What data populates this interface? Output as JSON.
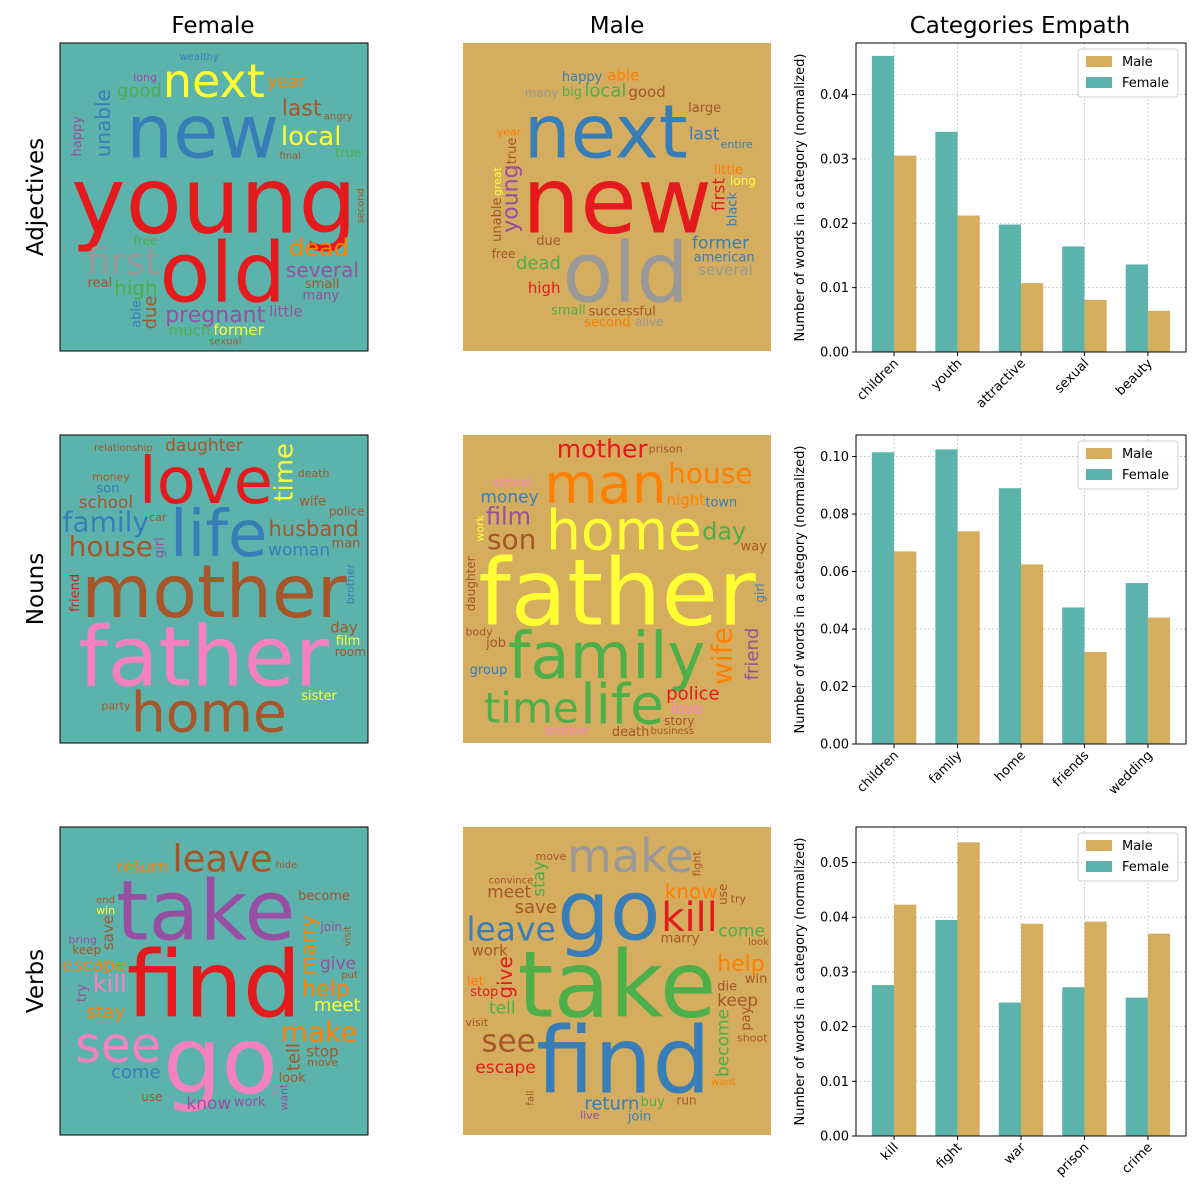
{
  "column_titles": [
    "Female",
    "Male",
    "Categories Empath"
  ],
  "row_labels": [
    "Adjectives",
    "Nouns",
    "Verbs"
  ],
  "colors": {
    "female_bg": "#5cb3ab",
    "male_bg": "#d5ad5f",
    "male_bar": "#d5ad5f",
    "female_bar": "#5cb3ab",
    "red": "#e41a1c",
    "blue": "#377eb8",
    "green": "#4daf4a",
    "purple": "#984ea3",
    "orange": "#ff7f00",
    "yellow": "#ffff33",
    "brown": "#a65628",
    "pink": "#f781bf",
    "gray": "#999999"
  },
  "wordclouds": {
    "adjectives_female": [
      {
        "w": "young",
        "c": "red",
        "s": 100
      },
      {
        "w": "old",
        "c": "red",
        "s": 90
      },
      {
        "w": "new",
        "c": "blue",
        "s": 80
      },
      {
        "w": "next",
        "c": "yellow",
        "s": 50
      },
      {
        "w": "first",
        "c": "gray",
        "s": 40
      },
      {
        "w": "pregnant",
        "c": "purple",
        "s": 24
      },
      {
        "w": "local",
        "c": "yellow",
        "s": 28
      },
      {
        "w": "dead",
        "c": "orange",
        "s": 26
      },
      {
        "w": "unable",
        "c": "blue",
        "s": 22
      },
      {
        "w": "high",
        "c": "green",
        "s": 22
      },
      {
        "w": "last",
        "c": "brown",
        "s": 24
      },
      {
        "w": "several",
        "c": "purple",
        "s": 22
      },
      {
        "w": "good",
        "c": "green",
        "s": 20
      },
      {
        "w": "due",
        "c": "brown",
        "s": 20
      },
      {
        "w": "former",
        "c": "yellow",
        "s": 16
      },
      {
        "w": "little",
        "c": "purple",
        "s": 16
      },
      {
        "w": "year",
        "c": "orange",
        "s": 18
      },
      {
        "w": "much",
        "c": "green",
        "s": 16
      },
      {
        "w": "happy",
        "c": "purple",
        "s": 14
      },
      {
        "w": "small",
        "c": "brown",
        "s": 14
      },
      {
        "w": "true",
        "c": "green",
        "s": 14
      },
      {
        "w": "many",
        "c": "purple",
        "s": 14
      },
      {
        "w": "real",
        "c": "brown",
        "s": 14
      },
      {
        "w": "able",
        "c": "blue",
        "s": 14
      },
      {
        "w": "free",
        "c": "green",
        "s": 13
      },
      {
        "w": "wealthy",
        "c": "blue",
        "s": 11
      },
      {
        "w": "final",
        "c": "brown",
        "s": 11
      },
      {
        "w": "long",
        "c": "purple",
        "s": 12
      },
      {
        "w": "second",
        "c": "brown",
        "s": 11
      },
      {
        "w": "angry",
        "c": "brown",
        "s": 11
      },
      {
        "w": "sexual",
        "c": "brown",
        "s": 10
      }
    ],
    "adjectives_male": [
      {
        "w": "new",
        "c": "red",
        "s": 100
      },
      {
        "w": "old",
        "c": "gray",
        "s": 90
      },
      {
        "w": "next",
        "c": "blue",
        "s": 80
      },
      {
        "w": "young",
        "c": "purple",
        "s": 24
      },
      {
        "w": "dead",
        "c": "green",
        "s": 20
      },
      {
        "w": "local",
        "c": "green",
        "s": 20
      },
      {
        "w": "last",
        "c": "blue",
        "s": 18
      },
      {
        "w": "former",
        "c": "blue",
        "s": 18
      },
      {
        "w": "first",
        "c": "red",
        "s": 18
      },
      {
        "w": "successful",
        "c": "brown",
        "s": 14
      },
      {
        "w": "good",
        "c": "brown",
        "s": 16
      },
      {
        "w": "american",
        "c": "blue",
        "s": 14
      },
      {
        "w": "little",
        "c": "orange",
        "s": 14
      },
      {
        "w": "black",
        "c": "blue",
        "s": 14
      },
      {
        "w": "high",
        "c": "red",
        "s": 16
      },
      {
        "w": "able",
        "c": "orange",
        "s": 16
      },
      {
        "w": "small",
        "c": "green",
        "s": 14
      },
      {
        "w": "several",
        "c": "gray",
        "s": 16
      },
      {
        "w": "unable",
        "c": "brown",
        "s": 14
      },
      {
        "w": "second",
        "c": "orange",
        "s": 14
      },
      {
        "w": "large",
        "c": "brown",
        "s": 14
      },
      {
        "w": "happy",
        "c": "blue",
        "s": 14
      },
      {
        "w": "due",
        "c": "brown",
        "s": 14
      },
      {
        "w": "true",
        "c": "brown",
        "s": 14
      },
      {
        "w": "big",
        "c": "green",
        "s": 14
      },
      {
        "w": "long",
        "c": "yellow",
        "s": 13
      },
      {
        "w": "free",
        "c": "brown",
        "s": 13
      },
      {
        "w": "year",
        "c": "orange",
        "s": 12
      },
      {
        "w": "great",
        "c": "yellow",
        "s": 12
      },
      {
        "w": "entire",
        "c": "blue",
        "s": 12
      },
      {
        "w": "many",
        "c": "gray",
        "s": 13
      },
      {
        "w": "alive",
        "c": "gray",
        "s": 13
      }
    ],
    "nouns_female": [
      {
        "w": "mother",
        "c": "brown",
        "s": 100
      },
      {
        "w": "father",
        "c": "pink",
        "s": 90
      },
      {
        "w": "life",
        "c": "blue",
        "s": 70
      },
      {
        "w": "love",
        "c": "red",
        "s": 70
      },
      {
        "w": "home",
        "c": "brown",
        "s": 60
      },
      {
        "w": "house",
        "c": "brown",
        "s": 40
      },
      {
        "w": "husband",
        "c": "brown",
        "s": 30
      },
      {
        "w": "family",
        "c": "blue",
        "s": 30
      },
      {
        "w": "time",
        "c": "yellow",
        "s": 28
      },
      {
        "w": "woman",
        "c": "blue",
        "s": 24
      },
      {
        "w": "daughter",
        "c": "brown",
        "s": 18
      },
      {
        "w": "school",
        "c": "brown",
        "s": 18
      },
      {
        "w": "wife",
        "c": "brown",
        "s": 14
      },
      {
        "w": "girl",
        "c": "purple",
        "s": 14
      },
      {
        "w": "day",
        "c": "brown",
        "s": 16
      },
      {
        "w": "man",
        "c": "brown",
        "s": 14
      },
      {
        "w": "film",
        "c": "yellow",
        "s": 14
      },
      {
        "w": "son",
        "c": "blue",
        "s": 14
      },
      {
        "w": "friend",
        "c": "red",
        "s": 14
      },
      {
        "w": "sister",
        "c": "yellow",
        "s": 14
      },
      {
        "w": "police",
        "c": "brown",
        "s": 13
      },
      {
        "w": "room",
        "c": "brown",
        "s": 13
      },
      {
        "w": "party",
        "c": "brown",
        "s": 12
      },
      {
        "w": "brother",
        "c": "blue",
        "s": 12
      },
      {
        "w": "car",
        "c": "brown",
        "s": 12
      },
      {
        "w": "money",
        "c": "brown",
        "s": 12
      },
      {
        "w": "death",
        "c": "brown",
        "s": 12
      },
      {
        "w": "relationship",
        "c": "brown",
        "s": 11
      }
    ],
    "nouns_male": [
      {
        "w": "father",
        "c": "yellow",
        "s": 100
      },
      {
        "w": "family",
        "c": "green",
        "s": 70
      },
      {
        "w": "home",
        "c": "yellow",
        "s": 60
      },
      {
        "w": "man",
        "c": "orange",
        "s": 60
      },
      {
        "w": "life",
        "c": "green",
        "s": 60
      },
      {
        "w": "time",
        "c": "green",
        "s": 60
      },
      {
        "w": "mother",
        "c": "red",
        "s": 36
      },
      {
        "w": "son",
        "c": "brown",
        "s": 30
      },
      {
        "w": "wife",
        "c": "orange",
        "s": 30
      },
      {
        "w": "house",
        "c": "orange",
        "s": 30
      },
      {
        "w": "day",
        "c": "green",
        "s": 26
      },
      {
        "w": "film",
        "c": "purple",
        "s": 26
      },
      {
        "w": "police",
        "c": "red",
        "s": 20
      },
      {
        "w": "friend",
        "c": "purple",
        "s": 20
      },
      {
        "w": "money",
        "c": "blue",
        "s": 18
      },
      {
        "w": "night",
        "c": "orange",
        "s": 16
      },
      {
        "w": "job",
        "c": "brown",
        "s": 14
      },
      {
        "w": "town",
        "c": "blue",
        "s": 14
      },
      {
        "w": "girl",
        "c": "blue",
        "s": 13
      },
      {
        "w": "love",
        "c": "pink",
        "s": 16
      },
      {
        "w": "death",
        "c": "brown",
        "s": 14
      },
      {
        "w": "group",
        "c": "blue",
        "s": 14
      },
      {
        "w": "way",
        "c": "brown",
        "s": 14
      },
      {
        "w": "daughter",
        "c": "brown",
        "s": 13
      },
      {
        "w": "story",
        "c": "brown",
        "s": 13
      },
      {
        "w": "school",
        "c": "pink",
        "s": 13
      },
      {
        "w": "brother",
        "c": "pink",
        "s": 13
      },
      {
        "w": "body",
        "c": "brown",
        "s": 12
      },
      {
        "w": "work",
        "c": "yellow",
        "s": 12
      },
      {
        "w": "prison",
        "c": "brown",
        "s": 12
      },
      {
        "w": "business",
        "c": "brown",
        "s": 11
      }
    ],
    "verbs_female": [
      {
        "w": "find",
        "c": "red",
        "s": 100
      },
      {
        "w": "go",
        "c": "pink",
        "s": 100
      },
      {
        "w": "take",
        "c": "purple",
        "s": 90
      },
      {
        "w": "see",
        "c": "pink",
        "s": 70
      },
      {
        "w": "leave",
        "c": "brown",
        "s": 40
      },
      {
        "w": "make",
        "c": "orange",
        "s": 30
      },
      {
        "w": "kill",
        "c": "pink",
        "s": 26
      },
      {
        "w": "help",
        "c": "orange",
        "s": 24
      },
      {
        "w": "marry",
        "c": "orange",
        "s": 22
      },
      {
        "w": "stay",
        "c": "orange",
        "s": 20
      },
      {
        "w": "escape",
        "c": "orange",
        "s": 20
      },
      {
        "w": "come",
        "c": "blue",
        "s": 20
      },
      {
        "w": "meet",
        "c": "yellow",
        "s": 20
      },
      {
        "w": "tell",
        "c": "brown",
        "s": 20
      },
      {
        "w": "know",
        "c": "purple",
        "s": 18
      },
      {
        "w": "return",
        "c": "orange",
        "s": 18
      },
      {
        "w": "give",
        "c": "purple",
        "s": 18
      },
      {
        "w": "stop",
        "c": "brown",
        "s": 16
      },
      {
        "w": "save",
        "c": "brown",
        "s": 16
      },
      {
        "w": "become",
        "c": "brown",
        "s": 14
      },
      {
        "w": "work",
        "c": "purple",
        "s": 14
      },
      {
        "w": "look",
        "c": "brown",
        "s": 14
      },
      {
        "w": "join",
        "c": "purple",
        "s": 13
      },
      {
        "w": "try",
        "c": "purple",
        "s": 14
      },
      {
        "w": "keep",
        "c": "brown",
        "s": 13
      },
      {
        "w": "use",
        "c": "brown",
        "s": 13
      },
      {
        "w": "win",
        "c": "yellow",
        "s": 12
      },
      {
        "w": "move",
        "c": "brown",
        "s": 12
      },
      {
        "w": "want",
        "c": "purple",
        "s": 12
      },
      {
        "w": "bring",
        "c": "purple",
        "s": 12
      },
      {
        "w": "put",
        "c": "brown",
        "s": 11
      },
      {
        "w": "hide",
        "c": "brown",
        "s": 11
      },
      {
        "w": "end",
        "c": "brown",
        "s": 11
      },
      {
        "w": "visit",
        "c": "brown",
        "s": 11
      }
    ],
    "verbs_male": [
      {
        "w": "take",
        "c": "green",
        "s": 100
      },
      {
        "w": "find",
        "c": "blue",
        "s": 100
      },
      {
        "w": "go",
        "c": "blue",
        "s": 90
      },
      {
        "w": "make",
        "c": "gray",
        "s": 50
      },
      {
        "w": "kill",
        "c": "red",
        "s": 44
      },
      {
        "w": "leave",
        "c": "blue",
        "s": 36
      },
      {
        "w": "see",
        "c": "brown",
        "s": 34
      },
      {
        "w": "help",
        "c": "orange",
        "s": 24
      },
      {
        "w": "give",
        "c": "red",
        "s": 22
      },
      {
        "w": "know",
        "c": "orange",
        "s": 22
      },
      {
        "w": "save",
        "c": "brown",
        "s": 20
      },
      {
        "w": "return",
        "c": "blue",
        "s": 20
      },
      {
        "w": "keep",
        "c": "brown",
        "s": 18
      },
      {
        "w": "become",
        "c": "green",
        "s": 18
      },
      {
        "w": "escape",
        "c": "red",
        "s": 18
      },
      {
        "w": "come",
        "c": "green",
        "s": 18
      },
      {
        "w": "meet",
        "c": "brown",
        "s": 18
      },
      {
        "w": "tell",
        "c": "green",
        "s": 18
      },
      {
        "w": "stay",
        "c": "green",
        "s": 18
      },
      {
        "w": "work",
        "c": "brown",
        "s": 16
      },
      {
        "w": "marry",
        "c": "brown",
        "s": 14
      },
      {
        "w": "die",
        "c": "brown",
        "s": 14
      },
      {
        "w": "stop",
        "c": "red",
        "s": 14
      },
      {
        "w": "pay",
        "c": "brown",
        "s": 14
      },
      {
        "w": "buy",
        "c": "green",
        "s": 14
      },
      {
        "w": "win",
        "c": "brown",
        "s": 14
      },
      {
        "w": "let",
        "c": "orange",
        "s": 14
      },
      {
        "w": "join",
        "c": "blue",
        "s": 14
      },
      {
        "w": "use",
        "c": "brown",
        "s": 13
      },
      {
        "w": "run",
        "c": "brown",
        "s": 13
      },
      {
        "w": "live",
        "c": "purple",
        "s": 12
      },
      {
        "w": "visit",
        "c": "brown",
        "s": 12
      },
      {
        "w": "move",
        "c": "brown",
        "s": 12
      },
      {
        "w": "fight",
        "c": "brown",
        "s": 12
      },
      {
        "w": "shoot",
        "c": "brown",
        "s": 12
      },
      {
        "w": "try",
        "c": "brown",
        "s": 12
      },
      {
        "w": "convince",
        "c": "brown",
        "s": 11
      },
      {
        "w": "look",
        "c": "brown",
        "s": 11
      },
      {
        "w": "fall",
        "c": "brown",
        "s": 11
      },
      {
        "w": "want",
        "c": "orange",
        "s": 11
      }
    ]
  },
  "chart_data": [
    {
      "type": "bar",
      "categories": [
        "children",
        "youth",
        "attractive",
        "sexual",
        "beauty"
      ],
      "series": [
        {
          "name": "Male",
          "values": [
            0.0305,
            0.0212,
            0.0107,
            0.0081,
            0.0064
          ]
        },
        {
          "name": "Female",
          "values": [
            0.046,
            0.0342,
            0.0198,
            0.0164,
            0.0136
          ]
        }
      ],
      "title": "Categories Empath",
      "ylabel": "Number of words in a category (normalized)",
      "ylim": [
        0,
        0.048
      ],
      "yticks": [
        0.0,
        0.01,
        0.02,
        0.03,
        0.04
      ],
      "ytick_labels": [
        "0.00",
        "0.01",
        "0.02",
        "0.03",
        "0.04"
      ],
      "grid": true,
      "legend": "top-right"
    },
    {
      "type": "bar",
      "categories": [
        "children",
        "family",
        "home",
        "friends",
        "wedding"
      ],
      "series": [
        {
          "name": "Male",
          "values": [
            0.067,
            0.074,
            0.0625,
            0.032,
            0.044
          ]
        },
        {
          "name": "Female",
          "values": [
            0.1015,
            0.1025,
            0.089,
            0.0475,
            0.056
          ]
        }
      ],
      "title": "",
      "ylabel": "Number of words in a category (normalized)",
      "ylim": [
        0,
        0.1075
      ],
      "yticks": [
        0.0,
        0.02,
        0.04,
        0.06,
        0.08,
        0.1
      ],
      "ytick_labels": [
        "0.00",
        "0.02",
        "0.04",
        "0.06",
        "0.08",
        "0.10"
      ],
      "grid": true,
      "legend": "top-right"
    },
    {
      "type": "bar",
      "categories": [
        "kill",
        "fight",
        "war",
        "prison",
        "crime"
      ],
      "series": [
        {
          "name": "Male",
          "values": [
            0.0423,
            0.0537,
            0.0388,
            0.0392,
            0.037
          ]
        },
        {
          "name": "Female",
          "values": [
            0.0276,
            0.0395,
            0.0244,
            0.0272,
            0.0253
          ]
        }
      ],
      "title": "",
      "ylabel": "Number of words in a category (normalized)",
      "ylim": [
        0,
        0.0565
      ],
      "yticks": [
        0.0,
        0.01,
        0.02,
        0.03,
        0.04,
        0.05
      ],
      "ytick_labels": [
        "0.00",
        "0.01",
        "0.02",
        "0.03",
        "0.04",
        "0.05"
      ],
      "grid": true,
      "legend": "top-right"
    }
  ]
}
